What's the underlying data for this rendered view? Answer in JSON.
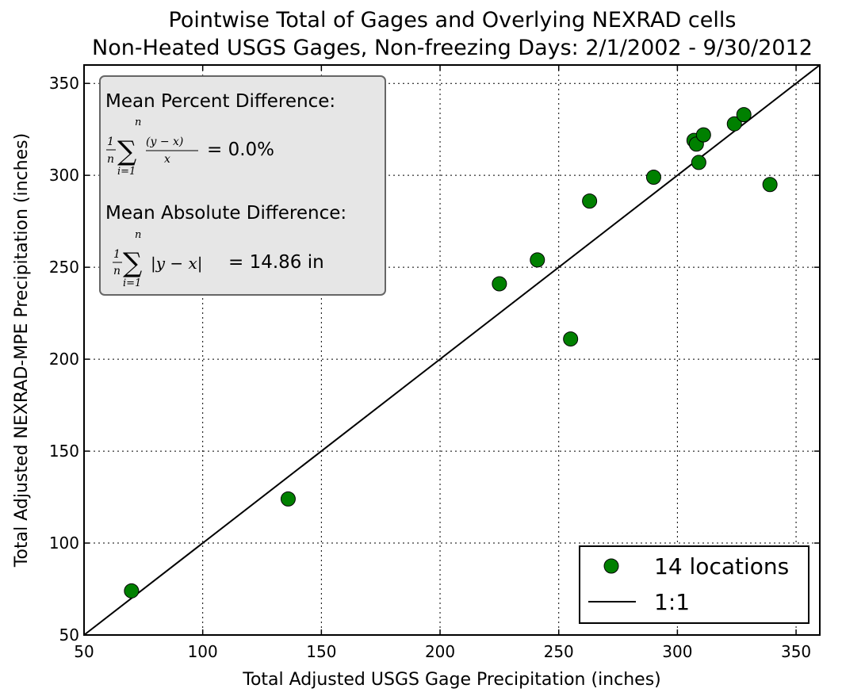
{
  "chart_data": {
    "type": "scatter",
    "title": "Pointwise Total of Gages and Overlying NEXRAD cells",
    "subtitle": "Non-Heated USGS Gages, Non-freezing Days: 2/1/2002 - 9/30/2012",
    "xlabel": "Total Adjusted USGS Gage Precipitation (inches)",
    "ylabel": "Total Adjusted NEXRAD-MPE Precipitation (inches)",
    "xlim": [
      50,
      360
    ],
    "ylim": [
      50,
      360
    ],
    "xticks": [
      50,
      100,
      150,
      200,
      250,
      300,
      350
    ],
    "yticks": [
      50,
      100,
      150,
      200,
      250,
      300,
      350
    ],
    "grid": true,
    "series": [
      {
        "name": "14 locations",
        "marker": "circle",
        "color": "#008000",
        "points": [
          {
            "x": 70,
            "y": 74
          },
          {
            "x": 136,
            "y": 124
          },
          {
            "x": 225,
            "y": 241
          },
          {
            "x": 241,
            "y": 254
          },
          {
            "x": 255,
            "y": 211
          },
          {
            "x": 263,
            "y": 286
          },
          {
            "x": 290,
            "y": 299
          },
          {
            "x": 307,
            "y": 319
          },
          {
            "x": 308,
            "y": 317
          },
          {
            "x": 309,
            "y": 307
          },
          {
            "x": 311,
            "y": 322
          },
          {
            "x": 324,
            "y": 328
          },
          {
            "x": 328,
            "y": 333
          },
          {
            "x": 339,
            "y": 295
          }
        ]
      },
      {
        "name": "1:1",
        "type": "line",
        "color": "#000000",
        "points": [
          {
            "x": 50,
            "y": 50
          },
          {
            "x": 360,
            "y": 360
          }
        ]
      }
    ],
    "legend": {
      "position": "bottom-right",
      "entries": [
        "14 locations",
        "1:1"
      ]
    },
    "annotation": {
      "percent_label": "Mean Percent Difference:",
      "percent_value": "= 0.0%",
      "absolute_label": "Mean Absolute Difference:",
      "absolute_value": "= 14.86 in"
    }
  }
}
